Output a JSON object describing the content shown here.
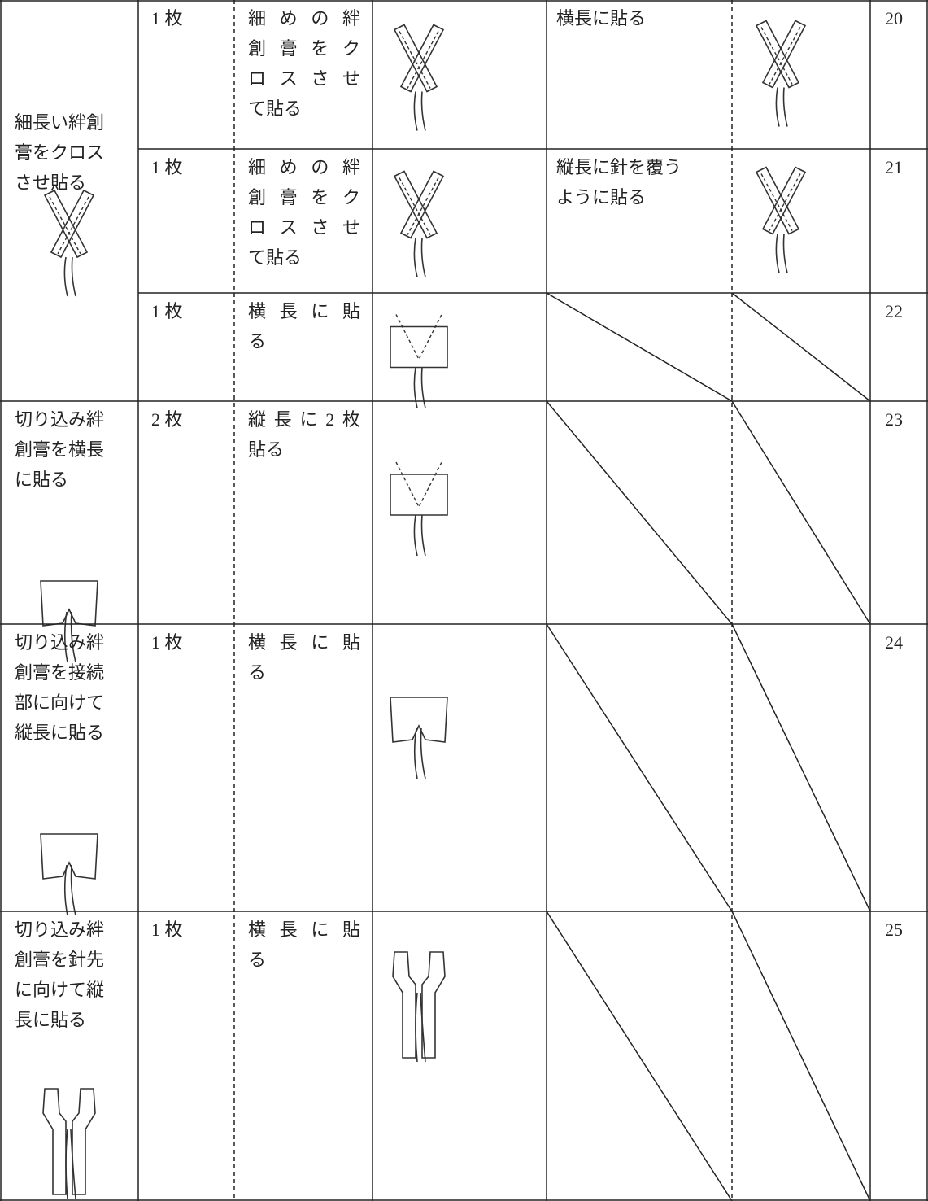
{
  "groups": [
    {
      "label": [
        "細長い絆創",
        "膏をクロス",
        "させ貼る"
      ],
      "rows": [
        {
          "count": "1 枚",
          "method": [
            "細めの絆",
            "創膏をク",
            "ロスさせ",
            "て貼る"
          ],
          "alternative": [
            "横長に貼る"
          ],
          "number": "20"
        },
        {
          "count": "1 枚",
          "method": [
            "細めの絆",
            "創膏をク",
            "ロスさせ",
            "て貼る"
          ],
          "alternative": [
            "縦長に針を覆う",
            "ように貼る"
          ],
          "number": "21"
        },
        {
          "count": "1 枚",
          "method": [
            "横長に貼",
            "る"
          ],
          "number": "22"
        }
      ]
    },
    {
      "label": [
        "切り込み絆",
        "創膏を横長",
        "に貼る"
      ],
      "rows": [
        {
          "count": "2 枚",
          "method": [
            "縦長に2枚",
            "貼る"
          ],
          "number": "23"
        }
      ]
    },
    {
      "label": [
        "切り込み絆",
        "創膏を接続",
        "部に向けて",
        "縦長に貼る"
      ],
      "rows": [
        {
          "count": "1 枚",
          "method": [
            "横長に貼",
            "る"
          ],
          "number": "24"
        }
      ]
    },
    {
      "label": [
        "切り込み絆",
        "創膏を針先",
        "に向けて縦",
        "長に貼る"
      ],
      "rows": [
        {
          "count": "1 枚",
          "method": [
            "横長に貼",
            "る"
          ],
          "number": "25"
        }
      ]
    }
  ]
}
